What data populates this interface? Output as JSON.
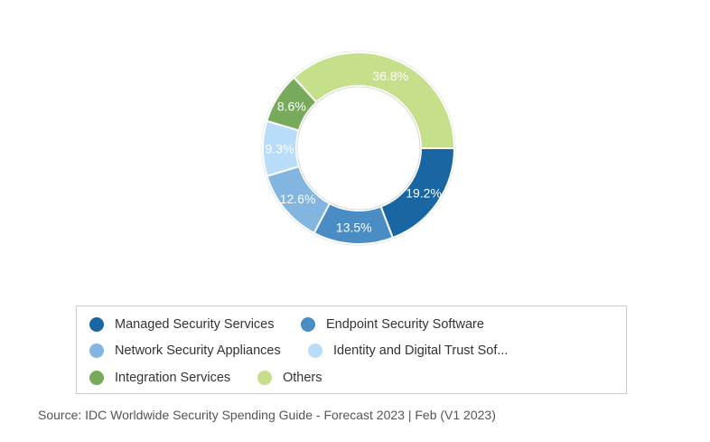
{
  "chart_data": {
    "type": "pie",
    "variant": "donut",
    "slices": [
      {
        "name": "Managed Security Services",
        "value": 19.2,
        "label": "19.2%",
        "color": "#1a66a3"
      },
      {
        "name": "Endpoint Security Software",
        "value": 13.5,
        "label": "13.5%",
        "color": "#4a8cc4"
      },
      {
        "name": "Network Security Appliances",
        "value": 12.6,
        "label": "12.6%",
        "color": "#82b6e0"
      },
      {
        "name": "Identity and Digital Trust Sof...",
        "value": 9.3,
        "label": "9.3%",
        "color": "#b9ddf8"
      },
      {
        "name": "Integration Services",
        "value": 8.6,
        "label": "8.6%",
        "color": "#77ab5b"
      },
      {
        "name": "Others",
        "value": 36.8,
        "label": "36.8%",
        "color": "#c6df8a"
      }
    ],
    "legend": "bottom"
  },
  "legend": {
    "items": [
      {
        "label": "Managed Security Services",
        "color": "#1a66a3"
      },
      {
        "label": "Endpoint Security Software",
        "color": "#4a8cc4"
      },
      {
        "label": "Network Security Appliances",
        "color": "#82b6e0"
      },
      {
        "label": "Identity and Digital Trust Sof...",
        "color": "#b9ddf8"
      },
      {
        "label": "Integration Services",
        "color": "#77ab5b"
      },
      {
        "label": "Others",
        "color": "#c6df8a"
      }
    ]
  },
  "source": "Source: IDC Worldwide Security Spending Guide - Forecast 2023 | Feb (V1 2023)"
}
